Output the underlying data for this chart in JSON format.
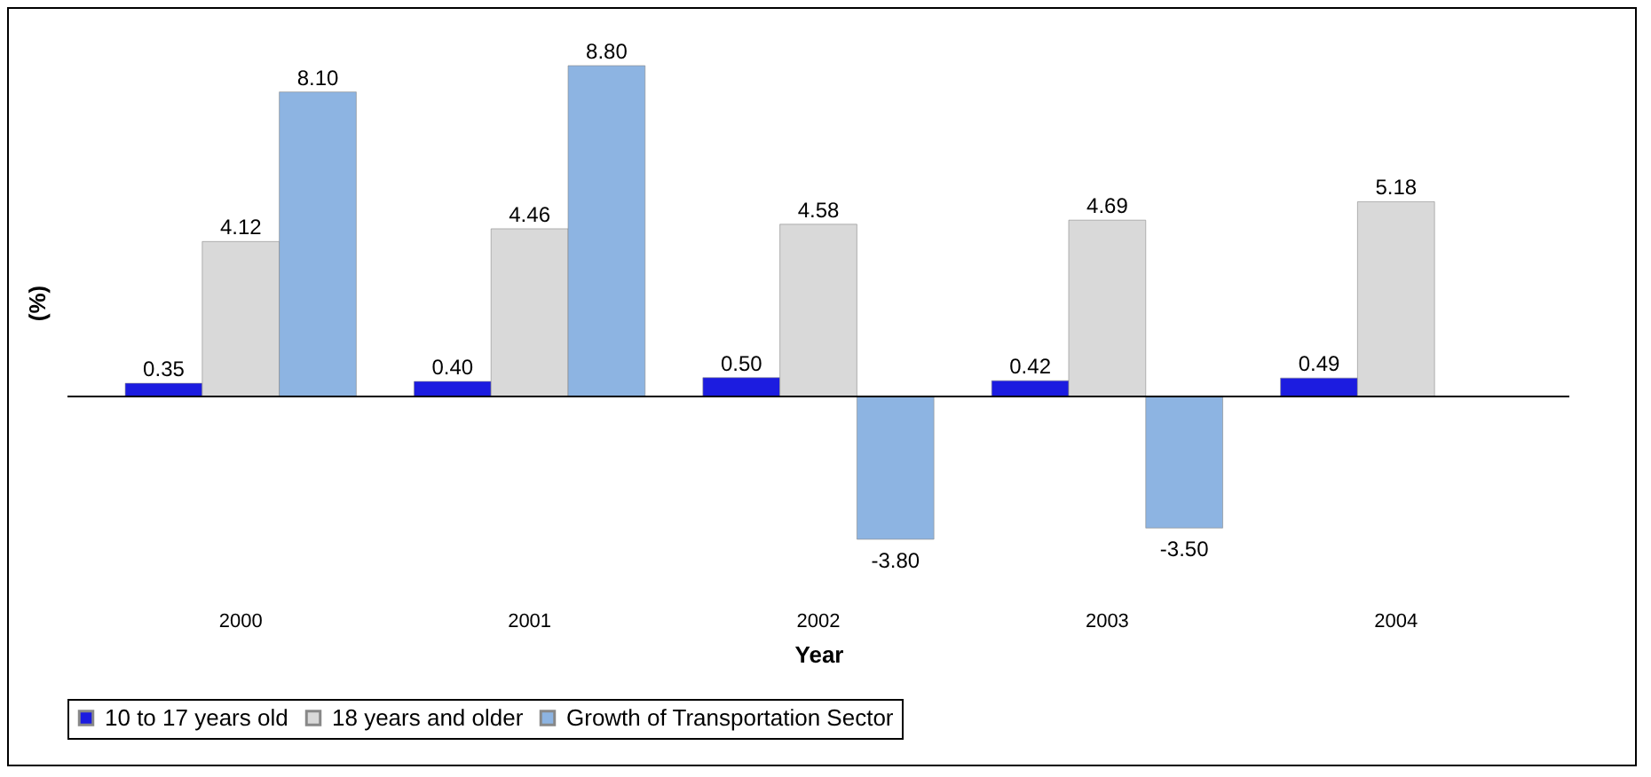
{
  "chart_data": {
    "type": "bar",
    "xlabel": "Year",
    "ylabel": "(%)",
    "categories": [
      "2000",
      "2001",
      "2002",
      "2003",
      "2004"
    ],
    "legend": "bottom",
    "grid": false,
    "series": [
      {
        "name": "10 to 17 years old",
        "color": "#1c1ce0",
        "values": [
          0.35,
          0.4,
          0.5,
          0.42,
          0.49
        ],
        "value_labels": [
          "0.35",
          "0.40",
          "0.50",
          "0.42",
          "0.49"
        ]
      },
      {
        "name": "18 years and older",
        "color": "#d9d9d9",
        "values": [
          4.12,
          4.46,
          4.58,
          4.69,
          5.18
        ],
        "value_labels": [
          "4.12",
          "4.46",
          "4.58",
          "4.69",
          "5.18"
        ]
      },
      {
        "name": "Growth of Transportation Sector",
        "color": "#8db4e2",
        "values": [
          8.1,
          8.8,
          -3.8,
          -3.5,
          null
        ],
        "value_labels": [
          "8.10",
          "8.80",
          "-3.80",
          "-3.50",
          null
        ]
      }
    ]
  }
}
